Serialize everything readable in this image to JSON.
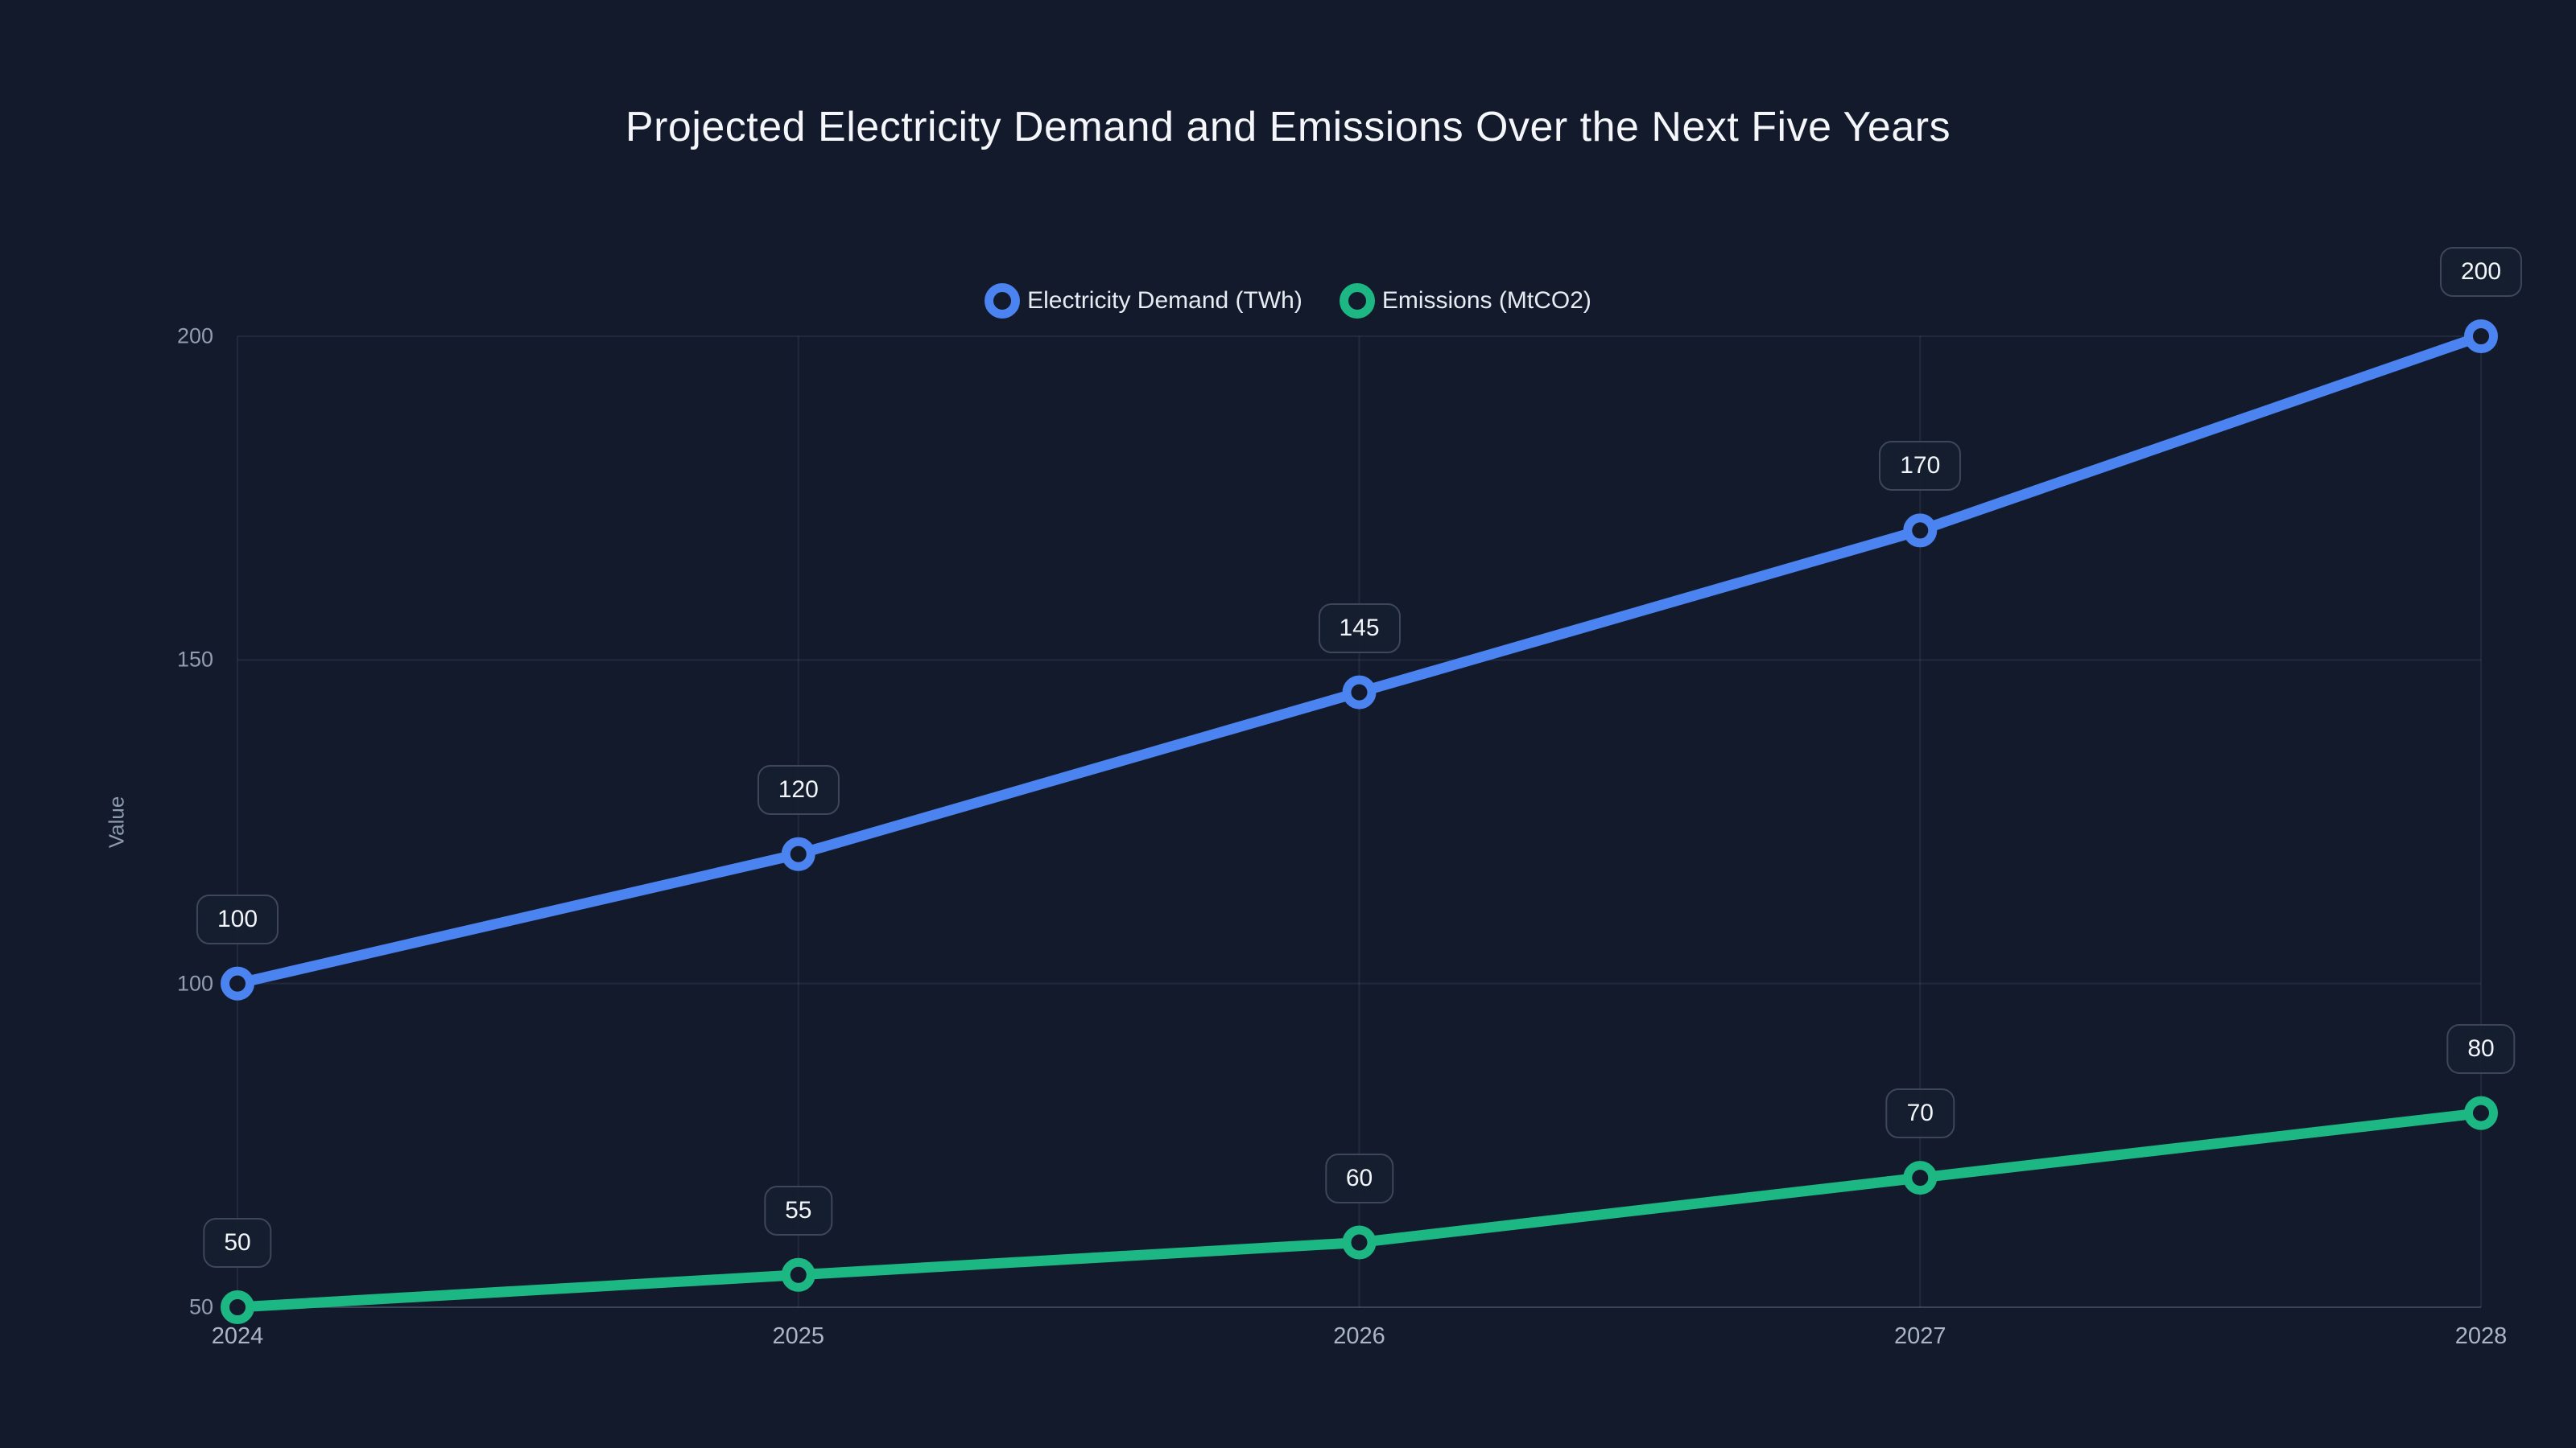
{
  "page": {
    "background_color": "#121a2c"
  },
  "chart_data": {
    "type": "line",
    "title": "Projected Electricity Demand and Emissions Over the Next Five Years",
    "xlabel": "",
    "ylabel": "Value",
    "categories": [
      "2024",
      "2025",
      "2026",
      "2027",
      "2028"
    ],
    "series": [
      {
        "name": "Electricity Demand (TWh)",
        "color": "#4b83f0",
        "values": [
          100,
          120,
          145,
          170,
          200
        ],
        "point_labels": [
          "100",
          "120",
          "145",
          "170",
          "200"
        ]
      },
      {
        "name": "Emissions (MtCO2)",
        "color": "#1cb783",
        "values": [
          50,
          55,
          60,
          70,
          80
        ],
        "point_labels": [
          "50",
          "55",
          "60",
          "70",
          "80"
        ]
      }
    ],
    "y_ticks": [
      50,
      100,
      150,
      200
    ],
    "ylim": [
      50,
      200
    ],
    "grid": true,
    "legend_position": "top",
    "data_labels": true,
    "style": {
      "grid_color": "rgba(148,163,184,0.12)",
      "axis_line_color": "rgba(148,163,184,0.3)",
      "y_tick_color": "#919db1",
      "x_tick_color": "#aab5c6",
      "label_box_border": "#3e4759",
      "label_box_fill": "rgba(22,30,48,0.92)"
    }
  }
}
